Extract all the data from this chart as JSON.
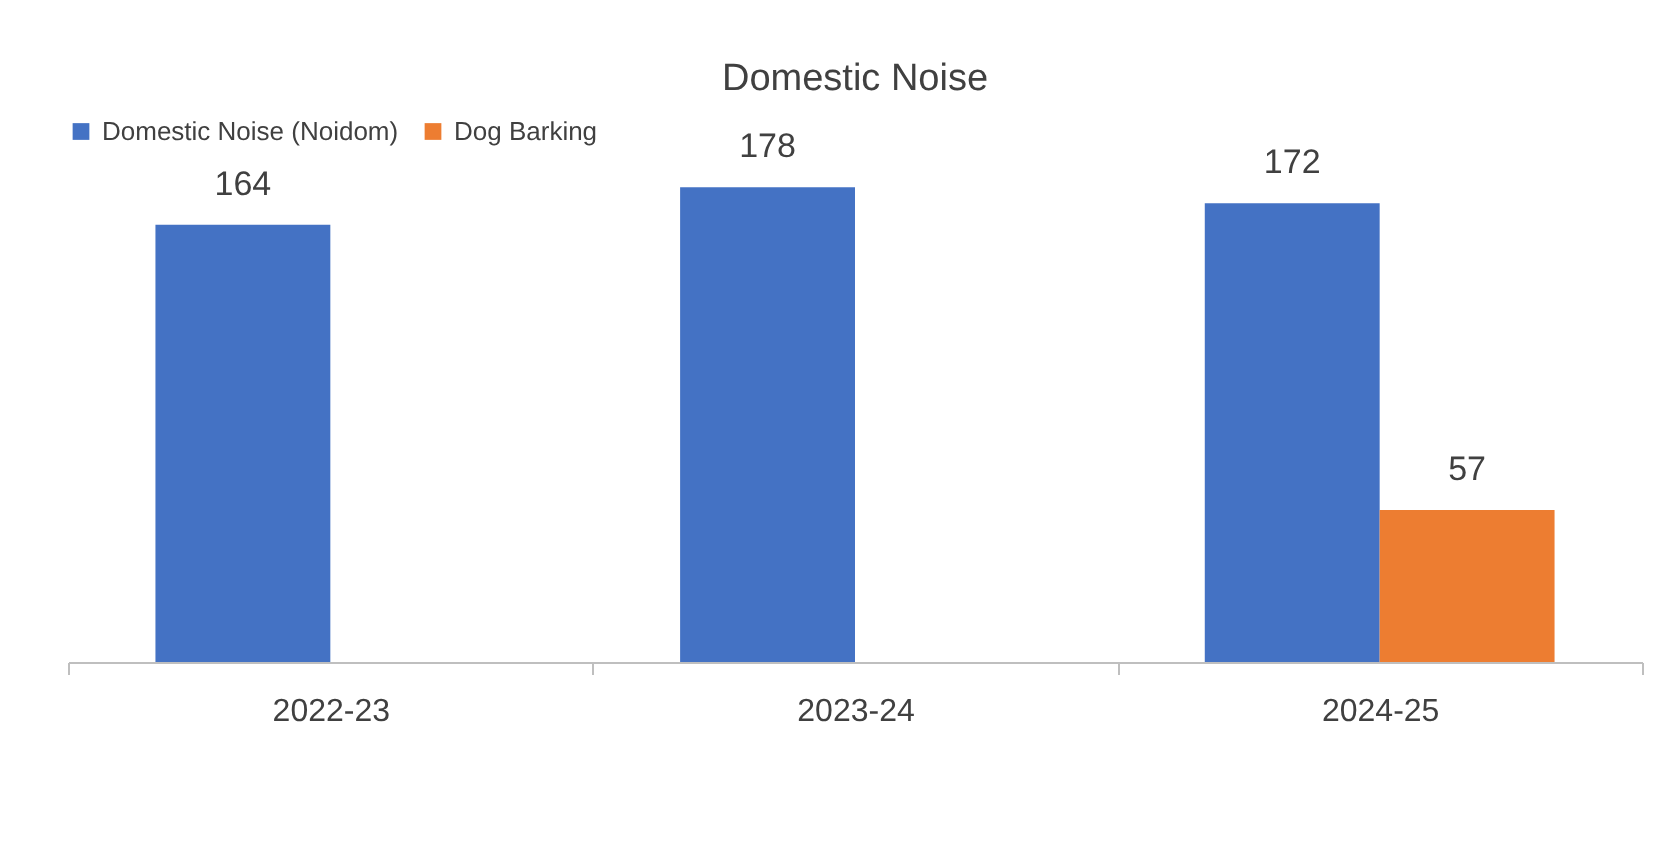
{
  "chart_data": {
    "type": "bar",
    "title": "Domestic Noise",
    "categories": [
      "2022-23",
      "2023-24",
      "2024-25"
    ],
    "series": [
      {
        "name": "Domestic Noise (Noidom)",
        "color": "#4472c4",
        "values": [
          164,
          178,
          172
        ]
      },
      {
        "name": "Dog Barking",
        "color": "#ed7d31",
        "values": [
          null,
          null,
          57
        ]
      }
    ],
    "data_labels": true,
    "legend": "top",
    "grid": false
  }
}
